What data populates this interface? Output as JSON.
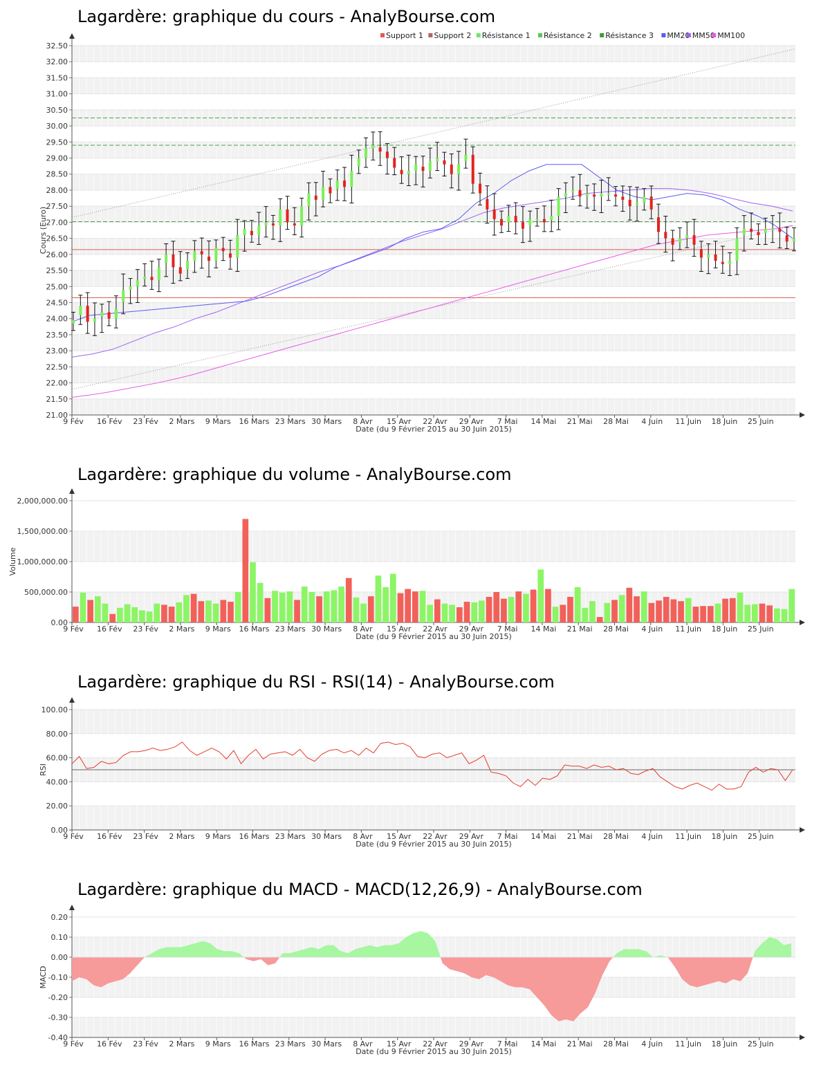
{
  "colors": {
    "up": "#7cf05a",
    "down": "#e5221d",
    "up_bar": "#8cf565",
    "down_bar": "#f2605a",
    "mm20": "#5b5bf2",
    "mm50": "#9b60f2",
    "mm100": "#e95ae9",
    "support": "#d9604e",
    "resistance": "#4ba24b",
    "rsi": "#e33d2c",
    "macd_pos": "#a6f7a0",
    "macd_neg": "#f79a9a"
  },
  "x_ticks": [
    "9 Fév",
    "16 Fév",
    "23 Fév",
    "2 Mars",
    "9 Mars",
    "16 Mars",
    "23 Mars",
    "30 Mars",
    "8 Avr",
    "15 Avr",
    "22 Avr",
    "29 Avr",
    "7 Mai",
    "14 Mai",
    "21 Mai",
    "28 Mai",
    "4 Juin",
    "11 Juin",
    "18 Juin",
    "25 Juin"
  ],
  "x_label": "Date (du 9 Février 2015 au 30 Juin 2015)",
  "legend": [
    {
      "label": "Support 1",
      "color": "#e55a4e"
    },
    {
      "label": "Support 2",
      "color": "#b8605a"
    },
    {
      "label": "Résistance 1",
      "color": "#6fe66f"
    },
    {
      "label": "Résistance 2",
      "color": "#5bc85b"
    },
    {
      "label": "Résistance 3",
      "color": "#3a9a3a"
    },
    {
      "label": "MM20",
      "color": "#5b5bf2"
    },
    {
      "label": "MM50",
      "color": "#9b60f2"
    },
    {
      "label": "MM100",
      "color": "#e95ae9"
    }
  ],
  "chart_data": [
    {
      "type": "candlestick",
      "title": "Lagardère: graphique du cours - AnalyBourse.com",
      "ylabel": "Cours (Euro)",
      "ylim": [
        21.0,
        32.5
      ],
      "y_ticks": [
        "21.00",
        "21.50",
        "22.00",
        "22.50",
        "23.00",
        "23.50",
        "24.00",
        "24.50",
        "25.00",
        "25.50",
        "26.00",
        "26.50",
        "27.00",
        "27.50",
        "28.00",
        "28.50",
        "29.00",
        "29.50",
        "30.00",
        "30.50",
        "31.00",
        "31.50",
        "32.00",
        "32.50"
      ],
      "closes": [
        23.95,
        24.4,
        23.9,
        24.0,
        24.2,
        24.0,
        24.3,
        24.9,
        25.0,
        25.2,
        25.3,
        25.2,
        25.6,
        26.0,
        25.6,
        25.4,
        25.8,
        26.1,
        26.0,
        25.8,
        26.2,
        26.1,
        25.9,
        26.6,
        26.8,
        26.6,
        26.9,
        27.0,
        26.9,
        27.4,
        27.0,
        26.9,
        27.5,
        27.9,
        27.7,
        28.1,
        27.9,
        28.3,
        28.1,
        28.6,
        29.0,
        29.3,
        29.4,
        29.2,
        29.0,
        28.7,
        28.5,
        28.6,
        28.8,
        28.6,
        28.9,
        29.0,
        28.8,
        28.5,
        28.8,
        29.1,
        28.2,
        27.9,
        27.4,
        27.1,
        26.9,
        27.2,
        27.0,
        26.8,
        27.1,
        27.1,
        27.0,
        27.2,
        27.8,
        27.9,
        28.0,
        27.8,
        27.9,
        27.8,
        27.9,
        27.9,
        27.8,
        27.7,
        27.5,
        27.6,
        27.8,
        27.4,
        26.7,
        26.5,
        26.3,
        26.5,
        26.6,
        26.3,
        25.9,
        26.0,
        25.8,
        25.7,
        25.8,
        26.5,
        26.8,
        26.7,
        26.6,
        26.8,
        26.8,
        26.7,
        26.4,
        26.5
      ],
      "series": [
        {
          "name": "MM20",
          "values": [
            23.9,
            24.1,
            24.15,
            24.2,
            24.25,
            24.3,
            24.35,
            24.4,
            24.45,
            24.5,
            24.55,
            24.7,
            24.9,
            25.1,
            25.3,
            25.6,
            25.8,
            26.0,
            26.2,
            26.5,
            26.7,
            26.8,
            27.1,
            27.6,
            27.9,
            28.3,
            28.6,
            28.8,
            28.8,
            28.8,
            28.4,
            28.0,
            27.8,
            27.7,
            27.8,
            27.9,
            27.85,
            27.7,
            27.4,
            27.2,
            26.9,
            26.5
          ]
        },
        {
          "name": "MM50",
          "values": [
            22.8,
            22.9,
            23.05,
            23.3,
            23.55,
            23.75,
            24.0,
            24.2,
            24.45,
            24.7,
            24.95,
            25.2,
            25.45,
            25.65,
            25.9,
            26.15,
            26.4,
            26.6,
            26.8,
            27.05,
            27.3,
            27.45,
            27.55,
            27.65,
            27.75,
            27.9,
            27.95,
            28.0,
            28.05,
            28.05,
            28.0,
            27.9,
            27.75,
            27.6,
            27.5,
            27.35
          ]
        },
        {
          "name": "MM100",
          "values": [
            21.55,
            21.62,
            21.7,
            21.8,
            21.9,
            22.0,
            22.12,
            22.25,
            22.4,
            22.55,
            22.7,
            22.85,
            23.0,
            23.15,
            23.3,
            23.45,
            23.6,
            23.75,
            23.9,
            24.05,
            24.2,
            24.35,
            24.5,
            24.65,
            24.8,
            24.95,
            25.1,
            25.25,
            25.4,
            25.55,
            25.7,
            25.85,
            26.0,
            26.15,
            26.3,
            26.4,
            26.5,
            26.6,
            26.65,
            26.7,
            26.75,
            26.8,
            26.9
          ]
        },
        {
          "name": "Support 1",
          "values": [
            26.15
          ]
        },
        {
          "name": "Support 2",
          "values": [
            24.65
          ]
        },
        {
          "name": "Résistance 1",
          "values": [
            27.02
          ]
        },
        {
          "name": "Résistance 2",
          "values": [
            29.4
          ]
        },
        {
          "name": "Résistance 3",
          "values": [
            30.25
          ]
        }
      ]
    },
    {
      "type": "bar",
      "title": "Lagardère: graphique du volume - AnalyBourse.com",
      "ylabel": "Volume",
      "ylim": [
        0,
        2000000
      ],
      "y_ticks": [
        "0.00",
        "500,000.00",
        "1,000,000.00",
        "1,500,000.00",
        "2,000,000.00"
      ],
      "values": [
        260000,
        490000,
        370000,
        430000,
        310000,
        140000,
        240000,
        300000,
        250000,
        200000,
        180000,
        310000,
        290000,
        260000,
        330000,
        450000,
        470000,
        350000,
        360000,
        310000,
        370000,
        340000,
        500000,
        1700000,
        990000,
        650000,
        400000,
        520000,
        490000,
        510000,
        370000,
        590000,
        500000,
        430000,
        510000,
        530000,
        590000,
        730000,
        410000,
        310000,
        430000,
        770000,
        580000,
        800000,
        480000,
        550000,
        510000,
        520000,
        290000,
        380000,
        310000,
        290000,
        250000,
        340000,
        330000,
        360000,
        420000,
        500000,
        390000,
        420000,
        510000,
        470000,
        540000,
        870000,
        550000,
        260000,
        290000,
        420000,
        580000,
        240000,
        350000,
        90000,
        320000,
        370000,
        450000,
        570000,
        430000,
        510000,
        320000,
        360000,
        420000,
        380000,
        350000,
        400000,
        260000,
        270000,
        270000,
        310000,
        390000,
        400000,
        490000,
        290000,
        300000,
        310000,
        280000,
        230000,
        220000,
        550000
      ],
      "up": [
        0,
        1,
        0,
        1,
        1,
        0,
        1,
        1,
        1,
        1,
        1,
        1,
        0,
        0,
        1,
        1,
        0,
        0,
        1,
        1,
        0,
        0,
        1,
        0,
        1,
        1,
        0,
        1,
        1,
        1,
        0,
        1,
        1,
        0,
        1,
        1,
        1,
        0,
        1,
        1,
        0,
        1,
        1,
        1,
        0,
        0,
        0,
        1,
        1,
        0,
        1,
        1,
        0,
        0,
        1,
        1,
        0,
        0,
        0,
        1,
        0,
        1,
        0,
        1,
        0,
        1,
        0,
        0,
        1,
        1,
        1,
        0,
        1,
        0,
        1,
        0,
        0,
        1,
        0,
        0,
        0,
        0,
        0,
        1,
        0,
        0,
        0,
        1,
        0,
        0,
        1,
        1,
        1,
        0,
        0,
        1,
        1,
        1
      ]
    },
    {
      "type": "line",
      "title": "Lagardère: graphique du RSI - RSI(14) - AnalyBourse.com",
      "ylabel": "RSI",
      "ylim": [
        0,
        100
      ],
      "y_ticks": [
        "0.00",
        "20.00",
        "40.00",
        "60.00",
        "80.00",
        "100.00"
      ],
      "reference": 50,
      "values": [
        55,
        61,
        51,
        52,
        57,
        55,
        56,
        62,
        65,
        65,
        66,
        68,
        66,
        67,
        69,
        73,
        66,
        62,
        65,
        68,
        65,
        59,
        66,
        55,
        62,
        67,
        59,
        63,
        64,
        65,
        62,
        67,
        60,
        57,
        63,
        66,
        67,
        64,
        66,
        62,
        68,
        64,
        72,
        73,
        71,
        72,
        69,
        61,
        60,
        63,
        64,
        60,
        62,
        64,
        55,
        58,
        62,
        48,
        47,
        45,
        39,
        36,
        42,
        37,
        43,
        42,
        45,
        54,
        53,
        53,
        51,
        54,
        52,
        53,
        50,
        51,
        47,
        46,
        49,
        51,
        44,
        40,
        36,
        34,
        37,
        39,
        36,
        33,
        38,
        34,
        34,
        36,
        48,
        52,
        48,
        51,
        50,
        41,
        50
      ]
    },
    {
      "type": "area",
      "title": "Lagardère: graphique du MACD - MACD(12,26,9) - AnalyBourse.com",
      "ylabel": "MACD",
      "ylim": [
        -0.4,
        0.2
      ],
      "y_ticks": [
        "-0.40",
        "-0.30",
        "-0.20",
        "-0.10",
        "0.00",
        "0.10",
        "0.20"
      ],
      "values": [
        -0.12,
        -0.1,
        -0.11,
        -0.14,
        -0.15,
        -0.13,
        -0.12,
        -0.11,
        -0.08,
        -0.04,
        0.0,
        0.02,
        0.04,
        0.05,
        0.05,
        0.05,
        0.06,
        0.07,
        0.08,
        0.07,
        0.04,
        0.03,
        0.03,
        0.02,
        -0.01,
        -0.02,
        -0.01,
        -0.04,
        -0.03,
        0.02,
        0.02,
        0.03,
        0.04,
        0.05,
        0.04,
        0.06,
        0.06,
        0.03,
        0.02,
        0.04,
        0.05,
        0.06,
        0.05,
        0.06,
        0.06,
        0.07,
        0.1,
        0.12,
        0.13,
        0.12,
        0.08,
        -0.03,
        -0.06,
        -0.07,
        -0.08,
        -0.1,
        -0.11,
        -0.09,
        -0.1,
        -0.12,
        -0.14,
        -0.15,
        -0.15,
        -0.16,
        -0.2,
        -0.24,
        -0.29,
        -0.32,
        -0.31,
        -0.32,
        -0.28,
        -0.25,
        -0.18,
        -0.09,
        -0.02,
        0.02,
        0.04,
        0.04,
        0.04,
        0.03,
        0.0,
        0.01,
        0.0,
        -0.05,
        -0.11,
        -0.14,
        -0.15,
        -0.14,
        -0.13,
        -0.12,
        -0.13,
        -0.11,
        -0.12,
        -0.08,
        0.03,
        0.07,
        0.1,
        0.09,
        0.06,
        0.07
      ]
    }
  ]
}
